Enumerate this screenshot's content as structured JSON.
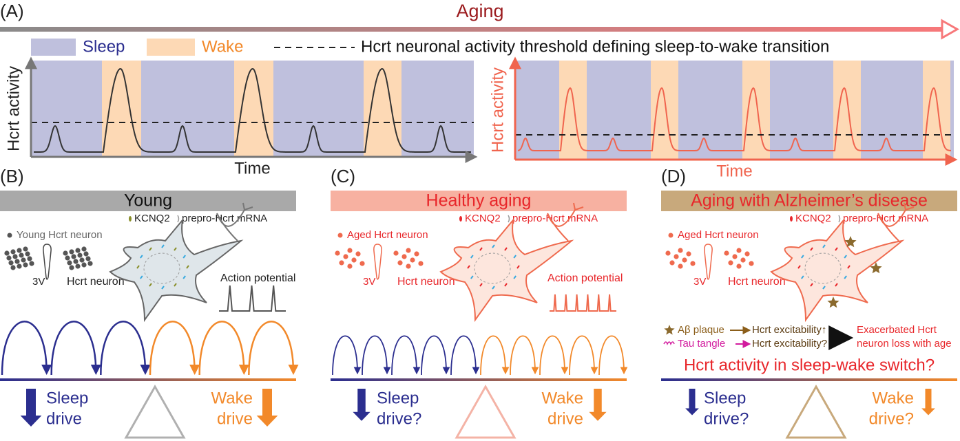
{
  "header": {
    "label": "(A)",
    "title": "Aging"
  },
  "legend": {
    "sleep": "Sleep",
    "wake": "Wake",
    "threshold": "Hcrt neuronal activity threshold defining sleep-to-wake transition"
  },
  "plots": [
    {
      "y_label": "Hcrt activity",
      "x_label": "Time"
    },
    {
      "y_label": "Hcrt activity",
      "x_label": "Time"
    }
  ],
  "panels": [
    {
      "label": "(B)",
      "title": "Young",
      "kcnq2": "KCNQ2",
      "mrna": "prepro-Hcrt mRNA",
      "group_label": "Young Hcrt neuron",
      "ventricle": "3V",
      "neuron_label": "Hcrt neuron",
      "action_potential": "Action potential",
      "sleep_drive": [
        "Sleep",
        "drive"
      ],
      "wake_drive": [
        "Wake",
        "drive"
      ]
    },
    {
      "label": "(C)",
      "title": "Healthy aging",
      "kcnq2": "KCNQ2",
      "mrna": "prepro-Hcrt mRNA",
      "group_label": "Aged Hcrt neuron",
      "ventricle": "3V",
      "neuron_label": "Hcrt neuron",
      "action_potential": "Action potential",
      "sleep_drive": [
        "Sleep",
        "drive?"
      ],
      "wake_drive": [
        "Wake",
        "drive"
      ]
    },
    {
      "label": "(D)",
      "title": "Aging with Alzheimer’s disease",
      "kcnq2": "KCNQ2",
      "mrna": "prepro-Hcrt mRNA",
      "group_label": "Aged Hcrt neuron",
      "ventricle": "3V",
      "neuron_label": "Hcrt neuron",
      "plaque": "Aβ plaque",
      "plaque_effect": "Hcrt excitability↑",
      "tangle": "Tau tangle",
      "tangle_effect": "Hcrt excitability?",
      "outcome": [
        "Exacerbated Hcrt",
        "neuron loss with age"
      ],
      "question": "Hcrt activity in sleep-wake switch?",
      "sleep_drive": [
        "Sleep",
        "drive?"
      ],
      "wake_drive": [
        "Wake",
        "drive?"
      ]
    }
  ]
}
